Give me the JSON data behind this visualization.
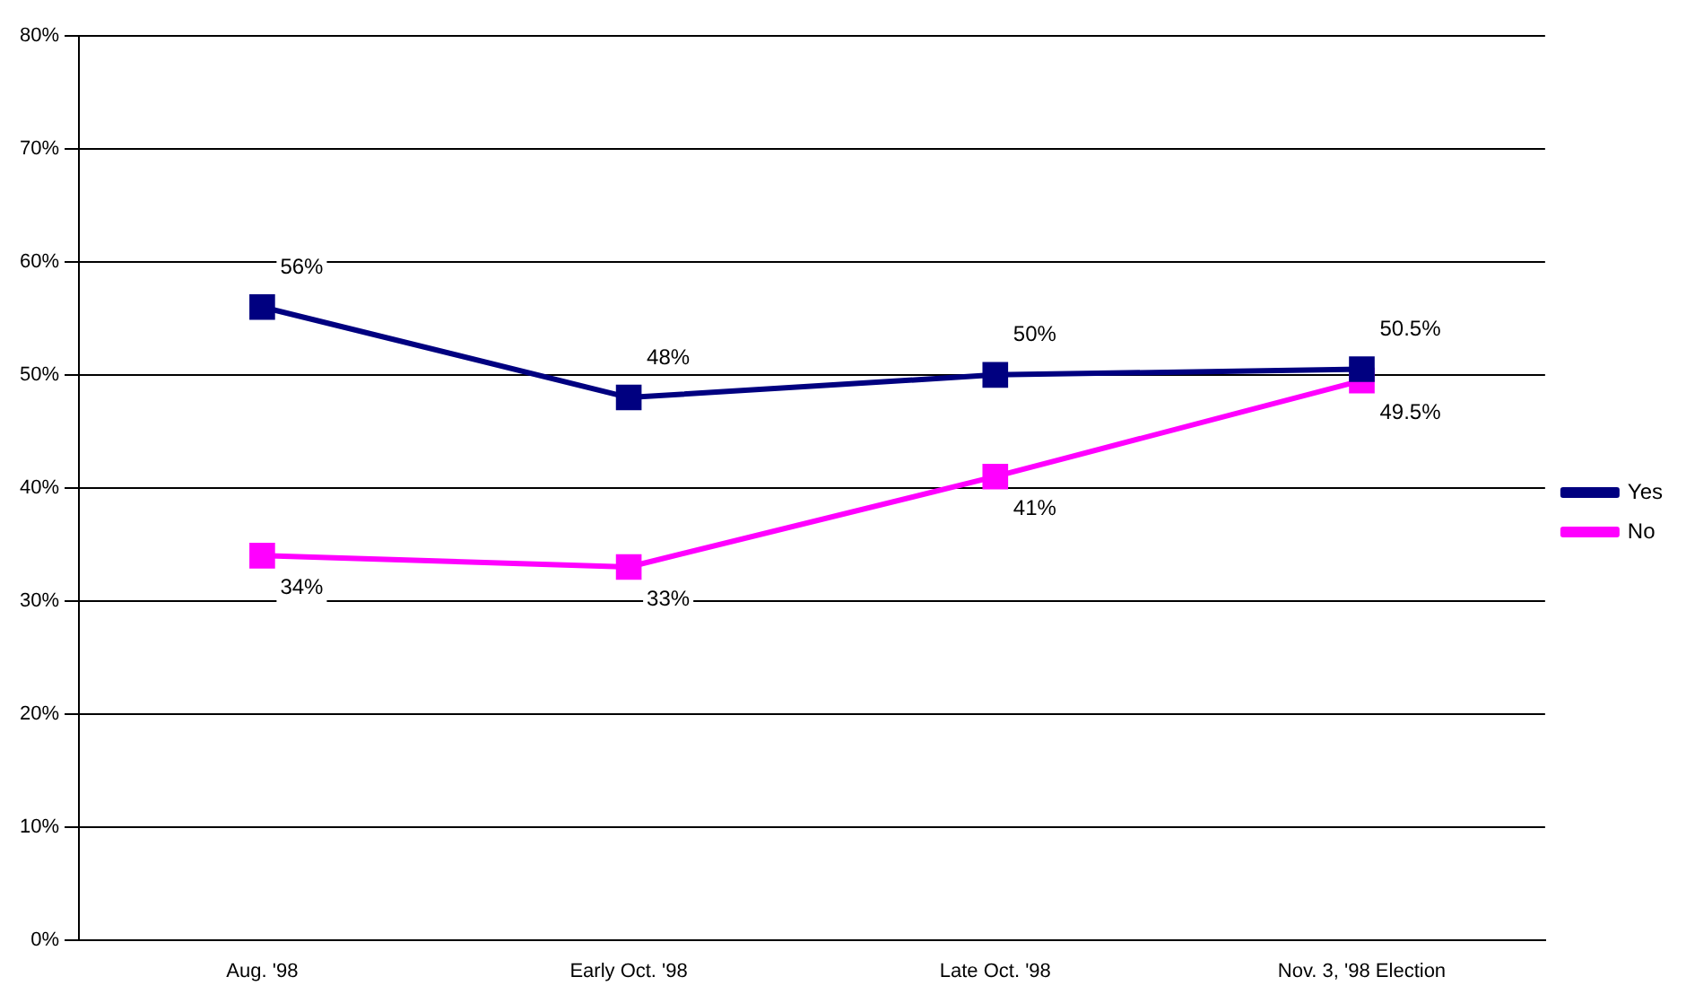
{
  "chart_data": {
    "type": "line",
    "categories": [
      "Aug. '98",
      "Early Oct. '98",
      "Late Oct. '98",
      "Nov. 3, '98 Election"
    ],
    "series": [
      {
        "name": "Yes",
        "color": "#000080",
        "values": [
          56,
          48,
          50,
          50.5
        ],
        "value_labels": [
          "56%",
          "48%",
          "50%",
          "50.5%"
        ]
      },
      {
        "name": "No",
        "color": "#ff00ff",
        "values": [
          34,
          33,
          41,
          49.5
        ],
        "value_labels": [
          "34%",
          "33%",
          "41%",
          "49.5%"
        ]
      }
    ],
    "ylim": [
      0,
      80
    ],
    "yticks": [
      {
        "value": 0,
        "label": "0%"
      },
      {
        "value": 10,
        "label": "10%"
      },
      {
        "value": 20,
        "label": "20%"
      },
      {
        "value": 30,
        "label": "30%"
      },
      {
        "value": 40,
        "label": "40%"
      },
      {
        "value": 50,
        "label": "50%"
      },
      {
        "value": 60,
        "label": "60%"
      },
      {
        "value": 70,
        "label": "70%"
      },
      {
        "value": 80,
        "label": "80%"
      }
    ],
    "grid": "y",
    "legend": "right",
    "marker": "square",
    "line_style": "solid"
  }
}
